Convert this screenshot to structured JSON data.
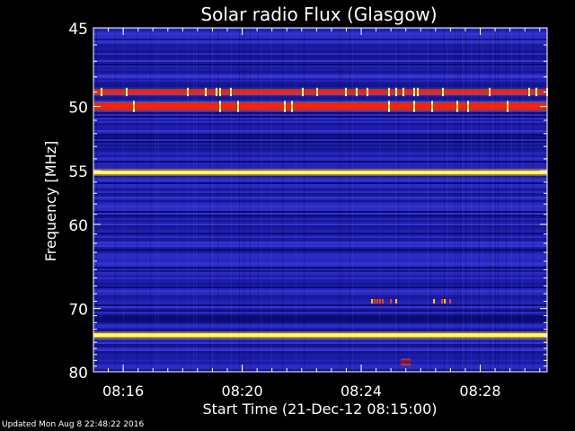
{
  "chart_data": {
    "type": "heatmap",
    "title": "Solar radio Flux (Glasgow)",
    "xlabel": "Start Time (21-Dec-12 08:15:00)",
    "ylabel": "Frequency [MHz]",
    "xlim": [
      "08:15:00",
      "08:30:15"
    ],
    "ylim": [
      45,
      80
    ],
    "y_scale": "reciprocal",
    "x_ticks": [
      "08:16",
      "08:20",
      "08:24",
      "08:28"
    ],
    "y_ticks": [
      45,
      50,
      55,
      60,
      70,
      80
    ],
    "colormap": "blue-red-yellow-white",
    "features": [
      {
        "name": "continuous interference band",
        "freq_mhz": [
          48.9,
          49.1
        ],
        "time": [
          "08:15:00",
          "08:30:15"
        ],
        "intensity": "high"
      },
      {
        "name": "continuous interference band",
        "freq_mhz": [
          49.8,
          50.2
        ],
        "time": [
          "08:15:00",
          "08:30:15"
        ],
        "intensity": "high"
      },
      {
        "name": "continuous interference band",
        "freq_mhz": [
          55.0,
          55.3
        ],
        "time": [
          "08:15:00",
          "08:30:15"
        ],
        "intensity": "very high"
      },
      {
        "name": "continuous interference band",
        "freq_mhz": [
          73.6,
          74.2
        ],
        "time": [
          "08:15:00",
          "08:30:15"
        ],
        "intensity": "very high"
      },
      {
        "name": "intermittent bursts",
        "freq_mhz": [
          68.7,
          69.3
        ],
        "time": [
          "08:24:20",
          "08:27:00"
        ],
        "intensity": "high"
      },
      {
        "name": "weak patch",
        "freq_mhz": [
          78.0,
          78.6
        ],
        "time": [
          "08:25:20",
          "08:25:40"
        ],
        "intensity": "medium"
      }
    ]
  },
  "footer": {
    "updated": "Updated Mon Aug  8 22:48:22 2016"
  },
  "colors": {
    "background": "#000000",
    "axes": "#ffffff",
    "base": "#1a1aa8",
    "band_red": "#ff2000",
    "band_yellow": "#ffff60"
  }
}
